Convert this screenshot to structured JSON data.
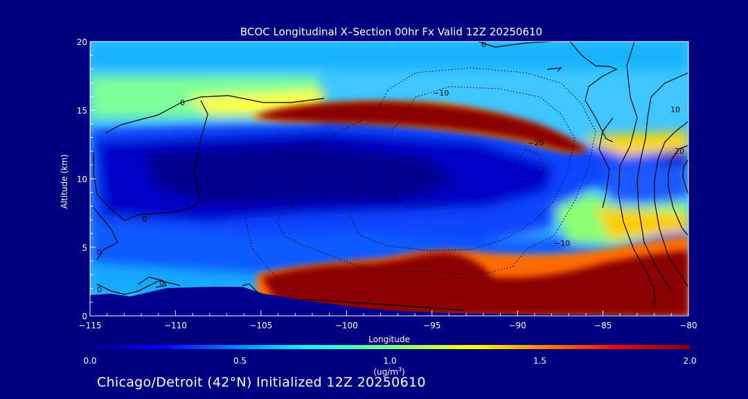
{
  "chart_data": {
    "type": "heatmap",
    "title": "BCOC Longitudinal X–Section 00hr  Fx Valid 12Z 20250610",
    "xlabel": "Longitude",
    "ylabel": "Altitude (km)",
    "xlim": [
      -115,
      -80
    ],
    "ylim": [
      0,
      20
    ],
    "x_ticks": [
      -115,
      -110,
      -105,
      -100,
      -95,
      -90,
      -85,
      -80
    ],
    "x_tick_labels": [
      "−115",
      "−110",
      "−105",
      "−100",
      "−95",
      "−90",
      "−85",
      "−80"
    ],
    "y_ticks": [
      0,
      5,
      10,
      15,
      20
    ],
    "y_tick_labels": [
      "0",
      "5",
      "10",
      "15",
      "20"
    ],
    "colorbar": {
      "min": 0.0,
      "max": 2.0,
      "ticks": [
        "0.0",
        "0.5",
        "1.0",
        "1.5",
        "2.0"
      ],
      "unit_label": "(ug/m",
      "unit_superscript": "3",
      "unit_close": ")",
      "colormap": "jet"
    },
    "contour_labels": [
      "0",
      "0",
      "0",
      "0",
      "0",
      "0",
      "0",
      "0",
      "−10",
      "−20",
      "−10",
      "10",
      "20"
    ],
    "features": [
      {
        "label": "upper high band",
        "lon_range": [
          -105,
          -86
        ],
        "alt_km": [
          12.5,
          15.5
        ],
        "value": 2.0
      },
      {
        "label": "lower high band",
        "lon_range": [
          -105,
          -80
        ],
        "alt_km": [
          0.3,
          4.5
        ],
        "value": 2.0
      },
      {
        "label": "mid-level minimum",
        "lon_range": [
          -115,
          -87
        ],
        "alt_km": [
          6,
          13
        ],
        "value": 0.1
      }
    ]
  },
  "footer": "Chicago/Detroit (42°N) Initialized 12Z 20250610"
}
